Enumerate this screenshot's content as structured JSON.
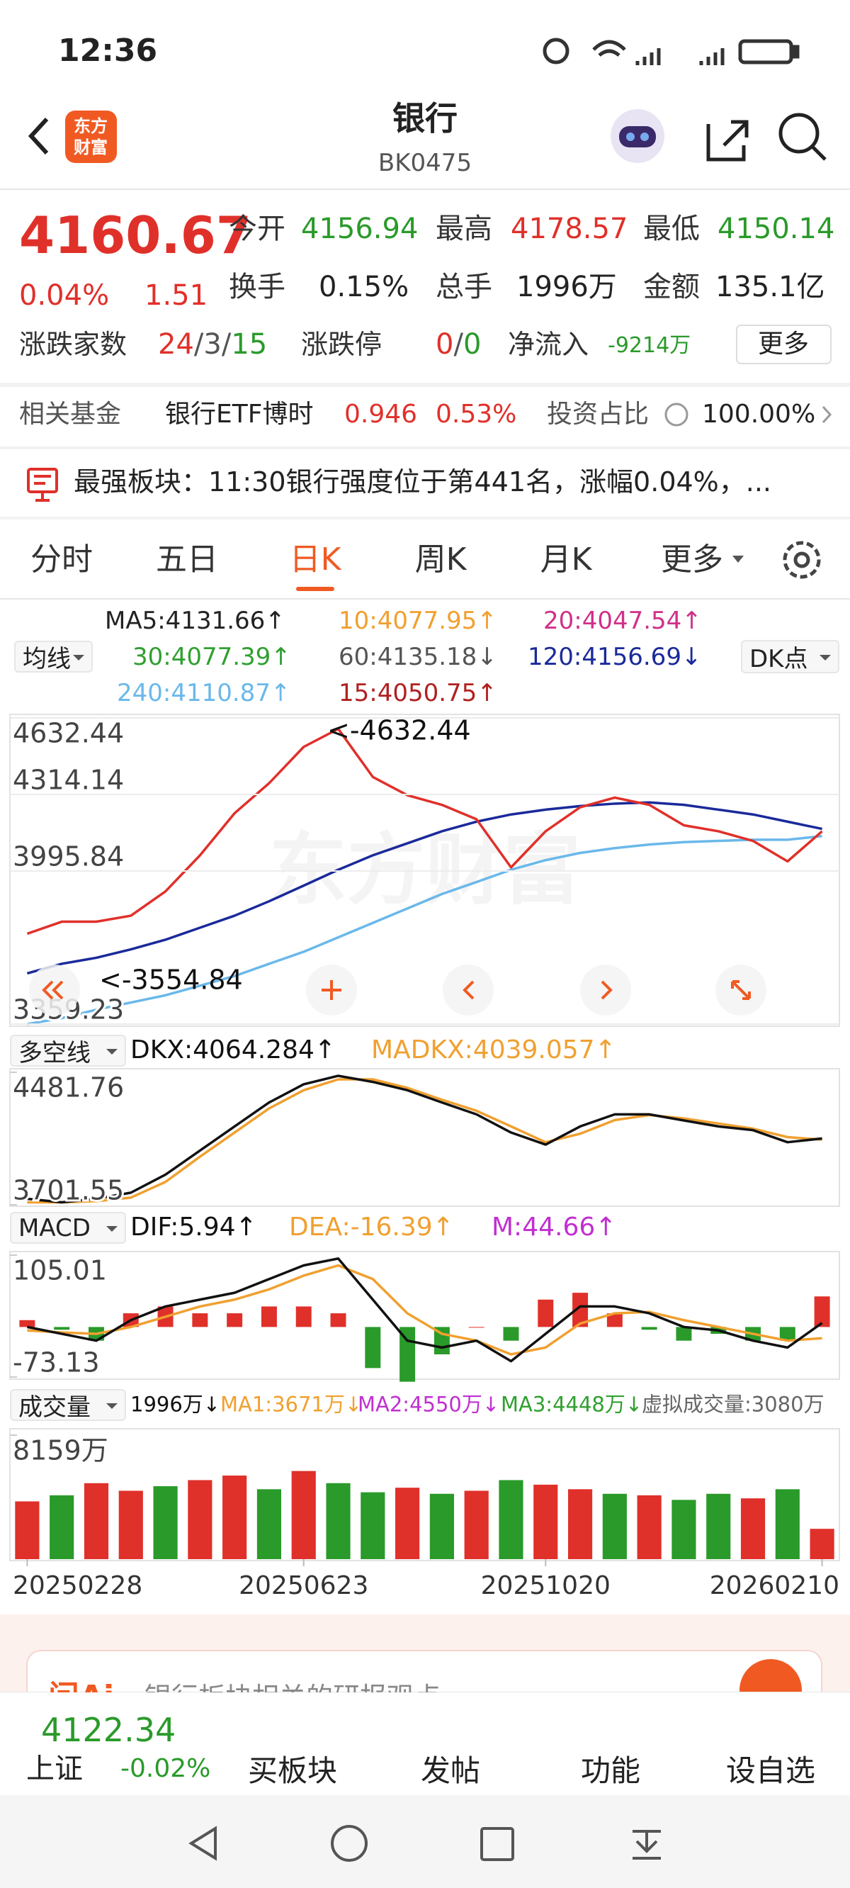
{
  "status_bar": {
    "time": "12:36"
  },
  "header": {
    "logo": [
      "东方",
      "财富"
    ],
    "title": "银行",
    "code": "BK0475"
  },
  "quote": {
    "price": "4160.67",
    "change_pct": "0.04%",
    "change": "1.51",
    "fields": [
      {
        "label": "今开",
        "value": "4156.94"
      },
      {
        "label": "最高",
        "value": "4178.57"
      },
      {
        "label": "最低",
        "value": "4150.14"
      },
      {
        "label": "换手",
        "value": "0.15%"
      },
      {
        "label": "总手",
        "value": "1996万"
      },
      {
        "label": "金额",
        "value": "135.1亿"
      }
    ],
    "breadth": {
      "label": "涨跌家数",
      "up": "24",
      "flat": "3",
      "down": "15",
      "separator": "/"
    },
    "limit": {
      "label": "涨跌停",
      "up": "0",
      "down": "0",
      "separator": "/"
    },
    "net_inflow": {
      "label": "净流入",
      "value": "-9214万"
    },
    "more": "更多"
  },
  "fund": {
    "label": "相关基金",
    "name": "银行ETF博时",
    "price": "0.946",
    "pct": "0.53%",
    "ratio_label": "投资占比",
    "ratio": "100.00%"
  },
  "news": {
    "label": "最强板块：",
    "text": "11:30银行强度位于第441名，涨幅0.04%，..."
  },
  "tabs": {
    "items": [
      "分时",
      "五日",
      "日K",
      "周K",
      "月K",
      "更多"
    ],
    "active": 2
  },
  "ma_legend": {
    "selector": "均线",
    "dk": "DK点",
    "items": [
      {
        "text": "MA5:4131.66↑",
        "color": "#222222"
      },
      {
        "text": "10:4077.95↑",
        "color": "#f0a030"
      },
      {
        "text": "20:4047.54↑",
        "color": "#d0308a"
      },
      {
        "text": "30:4077.39↑",
        "color": "#30a030"
      },
      {
        "text": "60:4135.18↓",
        "color": "#555555"
      },
      {
        "text": "120:4156.69↓",
        "color": "#1a2a9a"
      },
      {
        "text": "240:4110.87↑",
        "color": "#6ab8ea"
      },
      {
        "text": "15:4050.75↑",
        "color": "#b02020"
      }
    ]
  },
  "dkx_legend": {
    "selector": "多空线",
    "items": [
      {
        "text": "DKX:4064.284↑",
        "color": "#111111"
      },
      {
        "text": "MADKX:4039.057↑",
        "color": "#f0a030"
      }
    ]
  },
  "macd_legend": {
    "selector": "MACD",
    "items": [
      {
        "text": "DIF:5.94↑",
        "color": "#111111"
      },
      {
        "text": "DEA:-16.39↑",
        "color": "#f0a030"
      },
      {
        "text": "M:44.66↑",
        "color": "#c030d0"
      }
    ]
  },
  "volume_legend": {
    "selector": "成交量",
    "items": [
      {
        "text": "1996万↓",
        "color": "#111111"
      },
      {
        "text": "MA1:3671万↓",
        "color": "#f0a030"
      },
      {
        "text": "MA2:4550万↓",
        "color": "#c030d0"
      },
      {
        "text": "MA3:4448万↓",
        "color": "#30a030"
      },
      {
        "text": "虚拟成交量:3080万",
        "color": "#666666"
      }
    ]
  },
  "chart_data": [
    {
      "type": "line",
      "ylim": [
        3359.23,
        4632.44
      ],
      "yticks": [
        4632.44,
        4314.14,
        3995.84,
        3359.23
      ],
      "grid": true,
      "watermark": "东方财富",
      "annotations": [
        "<-4632.44",
        "<-3554.84"
      ],
      "series": [
        {
          "color": "#6ab8ea",
          "values": [
            3359,
            3384,
            3419,
            3449,
            3479,
            3519,
            3559,
            3610,
            3660,
            3720,
            3780,
            3840,
            3900,
            3950,
            4001,
            4041,
            4071,
            4091,
            4106,
            4116,
            4121,
            4126,
            4126,
            4141
          ]
        },
        {
          "color": "#1a2a9a",
          "values": [
            3570,
            3610,
            3635,
            3670,
            3710,
            3760,
            3810,
            3870,
            3935,
            4001,
            4061,
            4111,
            4161,
            4201,
            4231,
            4251,
            4266,
            4276,
            4281,
            4271,
            4251,
            4231,
            4201,
            4171
          ]
        },
        {
          "color": "#e0302a",
          "values": [
            3735,
            3785,
            3785,
            3810,
            3911,
            4061,
            4236,
            4361,
            4512,
            4587,
            4387,
            4311,
            4271,
            4211,
            4011,
            4161,
            4261,
            4301,
            4271,
            4186,
            4161,
            4121,
            4036,
            4161
          ]
        }
      ]
    },
    {
      "type": "line",
      "ylim": [
        3701.55,
        4481.76
      ],
      "yticks": [
        4481.76,
        3701.55
      ],
      "grid": false,
      "series": [
        {
          "color": "#f0a030",
          "values": [
            3716,
            3716,
            3723,
            3744,
            3836,
            3985,
            4127,
            4269,
            4376,
            4440,
            4440,
            4390,
            4320,
            4255,
            4163,
            4070,
            4120,
            4200,
            4230,
            4210,
            4180,
            4150,
            4100,
            4085
          ]
        },
        {
          "color": "#111111",
          "values": [
            3737,
            3716,
            3737,
            3773,
            3879,
            4021,
            4163,
            4304,
            4411,
            4461,
            4425,
            4376,
            4304,
            4234,
            4127,
            4056,
            4163,
            4234,
            4234,
            4198,
            4163,
            4141,
            4070,
            4092
          ]
        }
      ]
    },
    {
      "type": "combo",
      "ylim": [
        -73.13,
        105.01
      ],
      "yticks": [
        105.01,
        -73.13
      ],
      "grid": false,
      "up_color": "#e0302a",
      "down_color": "#2a9a2a",
      "series": [
        {
          "type": "bar",
          "values": [
            10,
            -4,
            -20,
            20,
            30,
            20,
            20,
            30,
            30,
            20,
            -60,
            -80,
            -40,
            0,
            -20,
            40,
            50,
            20,
            -4,
            -20,
            -10,
            -20,
            -20,
            44.66
          ]
        },
        {
          "type": "line",
          "color": "#f0a030",
          "values": [
            -5,
            -8,
            -10,
            0,
            15,
            30,
            40,
            55,
            75,
            90,
            70,
            20,
            -10,
            -20,
            -40,
            -30,
            5,
            20,
            22,
            10,
            0,
            -10,
            -20,
            -16.39
          ]
        },
        {
          "type": "line",
          "color": "#111111",
          "values": [
            0,
            -10,
            -20,
            10,
            30,
            40,
            50,
            70,
            90,
            100,
            40,
            -20,
            -30,
            -20,
            -50,
            -10,
            30,
            30,
            20,
            0,
            -5,
            -20,
            -30,
            5.94
          ]
        }
      ]
    },
    {
      "type": "bar",
      "ylim": [
        0,
        8159
      ],
      "yticks": [
        {
          "value": 8159,
          "label": "8159万"
        }
      ],
      "grid": false,
      "categories": [
        "20250228",
        null,
        null,
        null,
        null,
        null,
        null,
        null,
        "20250623",
        null,
        null,
        null,
        null,
        null,
        null,
        "20251020",
        null,
        null,
        null,
        null,
        null,
        null,
        null,
        "20260210"
      ],
      "values": [
        3800,
        4200,
        5000,
        4500,
        4800,
        5200,
        5500,
        4600,
        5800,
        5000,
        4400,
        4700,
        4300,
        4500,
        5200,
        4900,
        4600,
        4300,
        4200,
        3900,
        4300,
        4000,
        4600,
        1996
      ],
      "colors": [
        "#e0302a",
        "#2a9a2a",
        "#e0302a",
        "#e0302a",
        "#2a9a2a",
        "#e0302a",
        "#e0302a",
        "#2a9a2a",
        "#e0302a",
        "#2a9a2a",
        "#2a9a2a",
        "#e0302a",
        "#2a9a2a",
        "#e0302a",
        "#2a9a2a",
        "#e0302a",
        "#e0302a",
        "#2a9a2a",
        "#e0302a",
        "#2a9a2a",
        "#2a9a2a",
        "#e0302a",
        "#2a9a2a",
        "#e0302a"
      ]
    }
  ],
  "ai_banner": {
    "logo": "问Ai",
    "text": "银行板块相关的研报观点"
  },
  "toolbar": {
    "index_value": "4122.34",
    "index_name": "上证",
    "index_pct": "-0.02%",
    "items": [
      "买板块",
      "发帖",
      "功能",
      "设自选"
    ]
  }
}
